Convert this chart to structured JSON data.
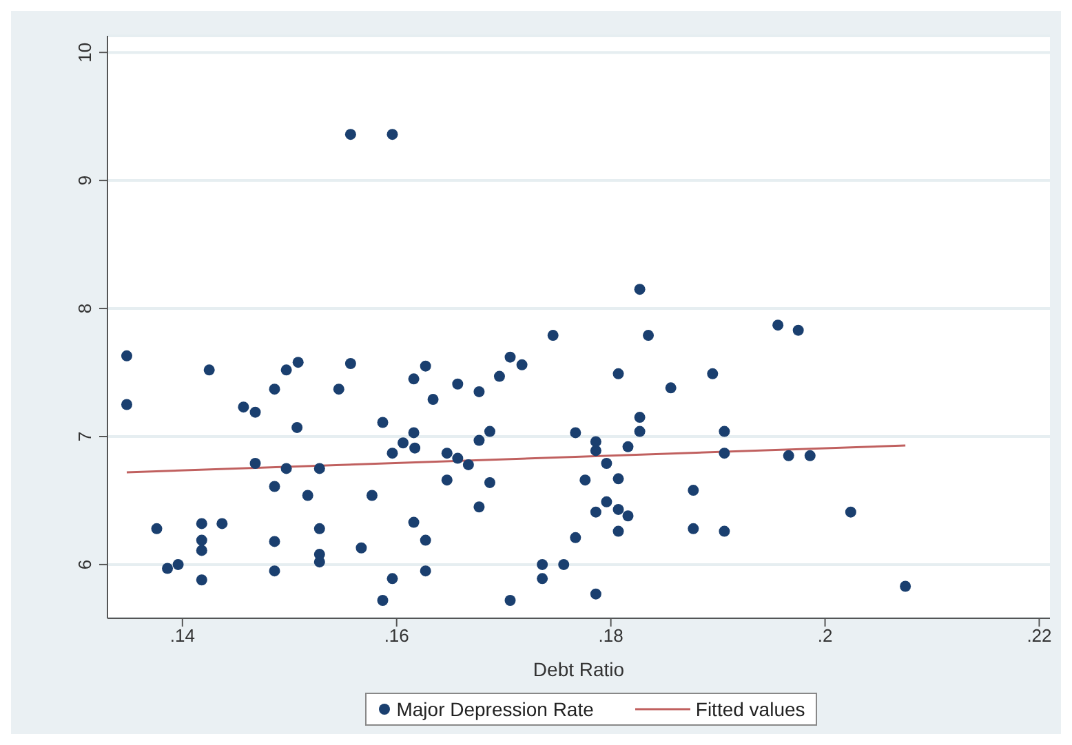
{
  "chart_data": {
    "type": "scatter",
    "xlabel": "Debt Ratio",
    "xlim": [
      0.133,
      0.221
    ],
    "xticks": [
      {
        "value": 0.14,
        "label": ".14"
      },
      {
        "value": 0.16,
        "label": ".16"
      },
      {
        "value": 0.18,
        "label": ".18"
      },
      {
        "value": 0.2,
        "label": ".2"
      },
      {
        "value": 0.22,
        "label": ".22"
      }
    ],
    "ylim": [
      5.58,
      10.13
    ],
    "yticks": [
      6,
      7,
      8,
      9,
      10
    ],
    "grid": "y",
    "legend": "bottom",
    "marker": "circle",
    "series": [
      {
        "name": "Major Depression Rate",
        "color": "#1a3f6f",
        "x": [
          0.1348,
          0.1348,
          0.1425,
          0.1376,
          0.1386,
          0.1396,
          0.1418,
          0.1418,
          0.1418,
          0.1418,
          0.1437,
          0.1457,
          0.1468,
          0.1468,
          0.1486,
          0.1497,
          0.1508,
          0.1507,
          0.1497,
          0.1486,
          0.1486,
          0.1486,
          0.1517,
          0.1528,
          0.1528,
          0.1528,
          0.1528,
          0.1546,
          0.1557,
          0.1557,
          0.1596,
          0.1567,
          0.1577,
          0.1587,
          0.1596,
          0.1606,
          0.1616,
          0.1617,
          0.1616,
          0.1627,
          0.1634,
          0.1616,
          0.1627,
          0.1627,
          0.1596,
          0.1587,
          0.1657,
          0.1677,
          0.1647,
          0.1657,
          0.1667,
          0.1647,
          0.1677,
          0.1687,
          0.1687,
          0.1677,
          0.1696,
          0.1706,
          0.1717,
          0.1746,
          0.1706,
          0.1736,
          0.1736,
          0.1756,
          0.1767,
          0.1767,
          0.1776,
          0.1786,
          0.1786,
          0.1796,
          0.1807,
          0.1786,
          0.1796,
          0.1807,
          0.1816,
          0.1807,
          0.1786,
          0.1807,
          0.1816,
          0.1827,
          0.1827,
          0.1827,
          0.1835,
          0.1856,
          0.1877,
          0.1877,
          0.1895,
          0.1906,
          0.1906,
          0.1906,
          0.1956,
          0.1975,
          0.1966,
          0.1986,
          0.2024,
          0.2075
        ],
        "values": [
          7.63,
          7.25,
          7.52,
          6.28,
          5.97,
          6.0,
          6.32,
          6.19,
          6.11,
          5.88,
          6.32,
          7.23,
          7.19,
          6.79,
          7.37,
          7.52,
          7.58,
          7.07,
          6.75,
          6.61,
          6.18,
          5.95,
          6.54,
          6.75,
          6.28,
          6.08,
          6.02,
          7.37,
          7.57,
          9.36,
          9.36,
          6.13,
          6.54,
          7.11,
          6.87,
          6.95,
          7.03,
          6.91,
          7.45,
          7.55,
          7.29,
          6.33,
          6.19,
          5.95,
          5.89,
          5.72,
          7.41,
          7.35,
          6.87,
          6.83,
          6.78,
          6.66,
          6.97,
          7.04,
          6.64,
          6.45,
          7.47,
          7.62,
          7.56,
          7.79,
          5.72,
          6.0,
          5.89,
          6.0,
          7.03,
          6.21,
          6.66,
          6.96,
          6.89,
          6.79,
          6.67,
          6.41,
          6.49,
          6.43,
          6.38,
          6.26,
          5.77,
          7.49,
          6.92,
          7.04,
          7.15,
          8.15,
          7.79,
          7.38,
          6.58,
          6.28,
          7.49,
          7.04,
          6.87,
          6.26,
          7.87,
          7.83,
          6.85,
          6.85,
          6.41,
          5.83
        ]
      },
      {
        "name": "Fitted values",
        "type": "line",
        "color": "#c0605f",
        "marker": "none",
        "x": [
          0.1348,
          0.2075
        ],
        "values": [
          6.72,
          6.93
        ]
      }
    ]
  }
}
